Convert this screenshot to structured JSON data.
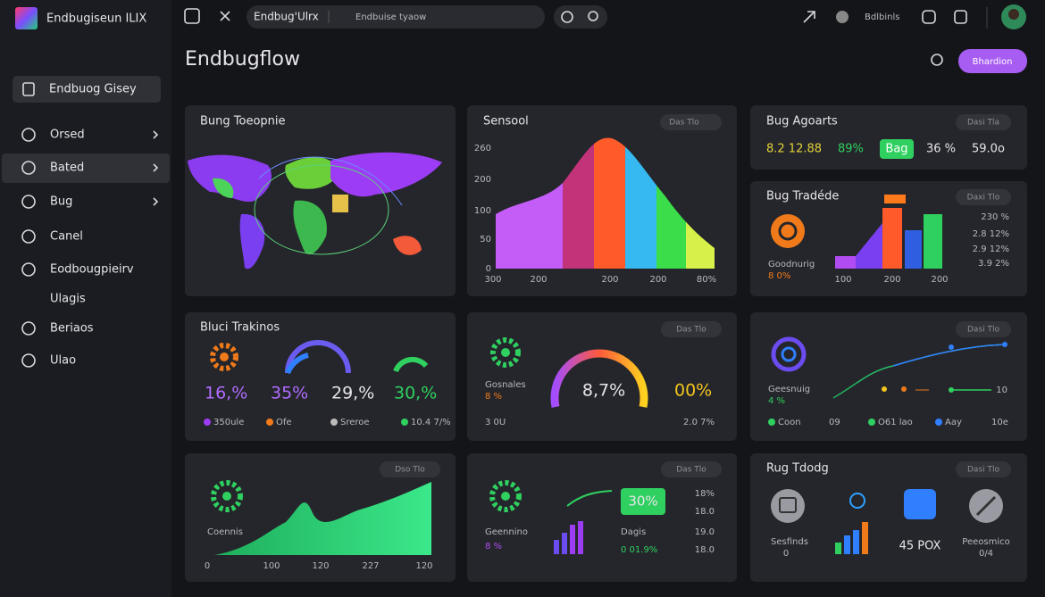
{
  "app": {
    "name": "Endbugiseun ILIX"
  },
  "topbar": {
    "tab": "Endbug'Ulrx",
    "address": "Endbuise tyaow",
    "user": "Bdlbinls"
  },
  "sidebar": {
    "search": "Endbuog Gisey",
    "items": [
      "Orsed",
      "Bated",
      "Bug",
      "Canel",
      "Eodbougpieirv",
      "Ulagis",
      "Beriaos",
      "Ulao"
    ]
  },
  "header": {
    "title": "Endbugflow",
    "button": "Bhardion"
  },
  "panels": {
    "map": {
      "title": "Bung Toeopnie"
    },
    "sensool": {
      "title": "Sensool",
      "badge": "Das Tlo",
      "yticks": [
        "260",
        "200",
        "100",
        "50",
        "0"
      ],
      "xlabels": [
        "300",
        "200",
        "200",
        "200",
        "80%"
      ]
    },
    "reports": {
      "title": "Bug Agoarts",
      "badge": "Dasi Tla",
      "stats": [
        "8.2 12.88",
        "89%",
        "Bag",
        "36 %",
        "59.0o"
      ]
    },
    "trading": {
      "title": "Bug Tradéde",
      "badge": "Daxi Tlo",
      "label": "Goodnurig",
      "sub": "8 0%",
      "xlabels": [
        "100",
        "200",
        "200"
      ],
      "values": [
        "230 %",
        "2.8 12%",
        "2.9 12%",
        "3.9 2%"
      ]
    },
    "tracking": {
      "title": "Bluci Trakinos",
      "stats": [
        "16,%",
        "35%",
        "29,%",
        "30,%"
      ],
      "legend": [
        "350ule",
        "Ofe",
        "Sreroe",
        "10.4 7/%"
      ]
    },
    "gauge": {
      "badge": "Das Tlo",
      "label": "Gosnales",
      "sub": "8 %",
      "value": "8,7%",
      "side": "00%",
      "foot": [
        "3 0U",
        "2.0 7%"
      ]
    },
    "line": {
      "badge": "Dasi Tlo",
      "label": "Geesnuig",
      "sub": "4 %",
      "tick": "10",
      "legend": [
        "Coon",
        "09",
        "O61 lao",
        "Aay",
        "10e"
      ]
    },
    "area": {
      "badge": "Dso Tlo",
      "label": "Coennis",
      "xlabels": [
        "0",
        "100",
        "120",
        "227",
        "120"
      ]
    },
    "mixed": {
      "badge": "Das Tlo",
      "label": "Geennino",
      "sub": "8 %",
      "highlight": "30%",
      "caption": "Dagis",
      "sub2": "0 01.9%",
      "values": [
        "18%",
        "18.0",
        "19.0",
        "18.0"
      ]
    },
    "today": {
      "title": "Rug Tdodg",
      "badge": "Dasi Tlo",
      "items": [
        "Sesfinds",
        "45 POX",
        "Peeosmico"
      ],
      "subs": [
        "0",
        "0/4"
      ]
    }
  }
}
